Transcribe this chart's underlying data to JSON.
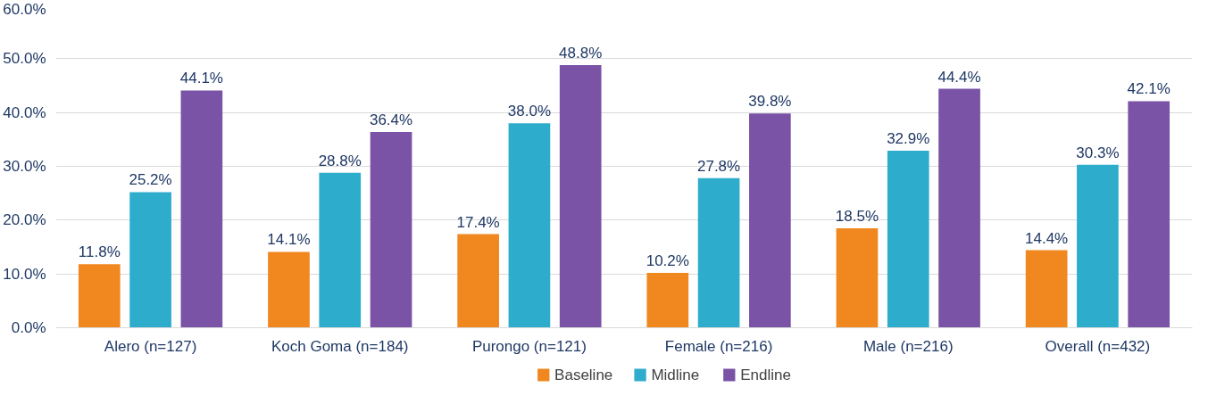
{
  "chart_data": {
    "type": "bar",
    "categories": [
      "Alero (n=127)",
      "Koch Goma (n=184)",
      "Purongo (n=121)",
      "Female (n=216)",
      "Male (n=216)",
      "Overall (n=432)"
    ],
    "series": [
      {
        "name": "Baseline",
        "color": "#f0871f",
        "values": [
          11.8,
          14.1,
          17.4,
          10.2,
          18.5,
          14.4
        ],
        "value_labels": [
          "11.8%",
          "14.1%",
          "17.4%",
          "10.2%",
          "18.5%",
          "14.4%"
        ]
      },
      {
        "name": "Midline",
        "color": "#2eaccc",
        "values": [
          25.2,
          28.8,
          38.0,
          27.8,
          32.9,
          30.3
        ],
        "value_labels": [
          "25.2%",
          "28.8%",
          "38.0%",
          "27.8%",
          "32.9%",
          "30.3%"
        ]
      },
      {
        "name": "Endline",
        "color": "#7a52a6",
        "values": [
          44.1,
          36.4,
          48.8,
          39.8,
          44.4,
          42.1
        ],
        "value_labels": [
          "44.1%",
          "36.4%",
          "48.8%",
          "39.8%",
          "44.4%",
          "42.1%"
        ]
      }
    ],
    "ylim": [
      0,
      60
    ],
    "yticks": [
      {
        "value": 0,
        "label": "0.0%"
      },
      {
        "value": 10,
        "label": "10.0%"
      },
      {
        "value": 20,
        "label": "20.0%"
      },
      {
        "value": 30,
        "label": "30.0%"
      },
      {
        "value": 40,
        "label": "40.0%"
      },
      {
        "value": 50,
        "label": "50.0%"
      },
      {
        "value": 60,
        "label": "60.0%"
      }
    ],
    "grid": "y",
    "legend": "bottom"
  }
}
